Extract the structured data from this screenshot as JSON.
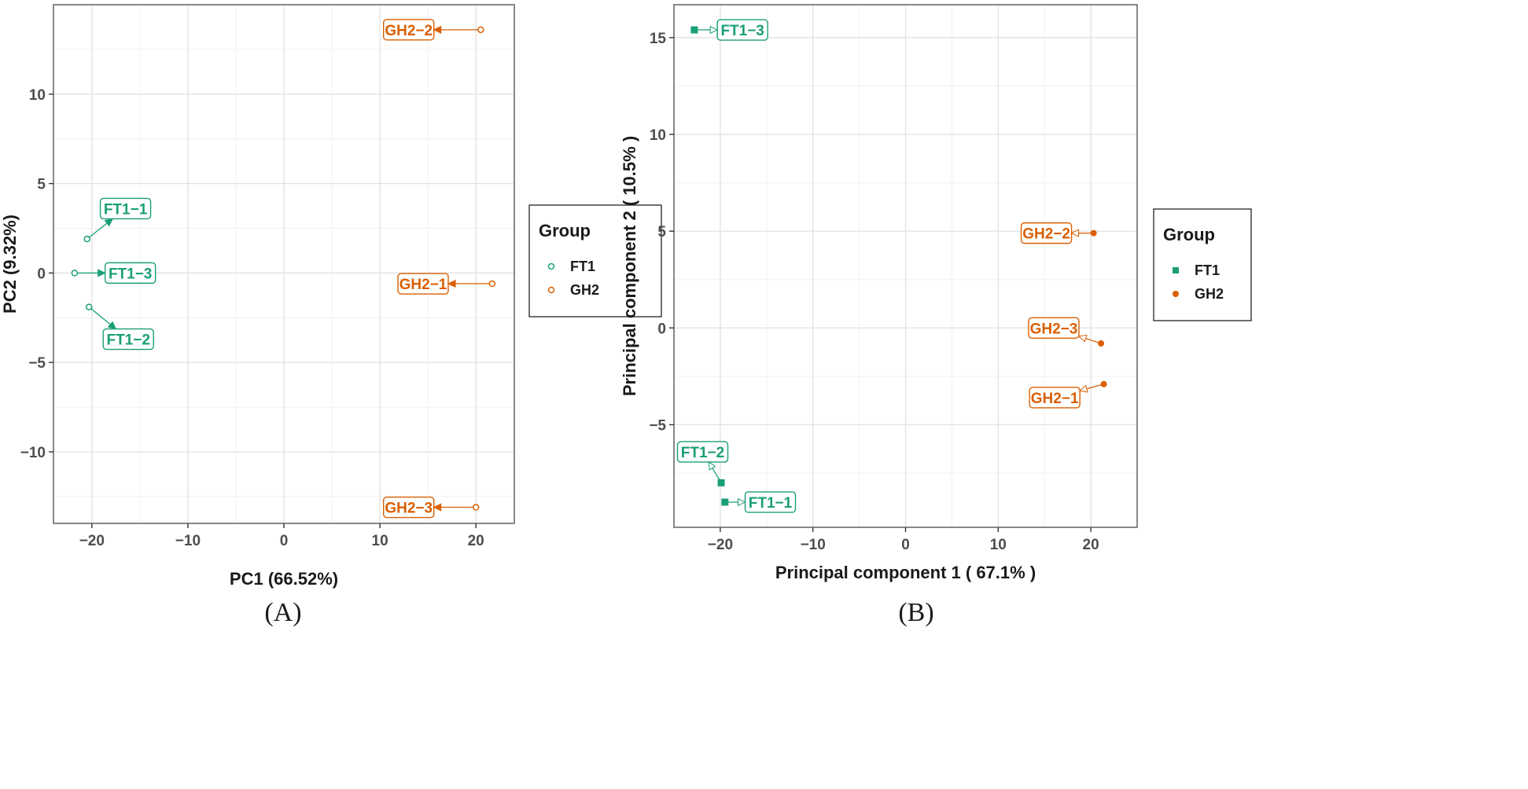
{
  "chart_data": [
    {
      "type": "scatter",
      "caption": "(A)",
      "title": "",
      "xlabel": "PC1 (66.52%)",
      "ylabel": "PC2 (9.32%)",
      "xlim": [
        -24,
        24
      ],
      "ylim": [
        -14,
        15
      ],
      "xticks": [
        -20,
        -10,
        0,
        10,
        20
      ],
      "yticks": [
        -10,
        -5,
        0,
        5,
        10
      ],
      "grid": true,
      "legend": {
        "title": "Group",
        "placement": "right",
        "marker": "open-circle"
      },
      "series": [
        {
          "name": "FT1",
          "color": "#1a9e77",
          "points": [
            {
              "label": "FT1−1",
              "x": -20.5,
              "y": 1.9,
              "lx": -16.5,
              "ly": 3.6
            },
            {
              "label": "FT1−3",
              "x": -21.8,
              "y": 0.0,
              "lx": -16.0,
              "ly": 0.0
            },
            {
              "label": "FT1−2",
              "x": -20.3,
              "y": -1.9,
              "lx": -16.2,
              "ly": -3.7
            }
          ]
        },
        {
          "name": "GH2",
          "color": "#d95f02",
          "points": [
            {
              "label": "GH2−2",
              "x": 20.5,
              "y": 13.6,
              "lx": 13.0,
              "ly": 13.6
            },
            {
              "label": "GH2−1",
              "x": 21.7,
              "y": -0.6,
              "lx": 14.5,
              "ly": -0.6
            },
            {
              "label": "GH2−3",
              "x": 20.0,
              "y": -13.1,
              "lx": 13.0,
              "ly": -13.1
            }
          ]
        }
      ]
    },
    {
      "type": "scatter",
      "caption": "(B)",
      "title": "",
      "xlabel": "Principal component 1 ( 67.1% )",
      "ylabel": "Principal component 2 ( 10.5% )",
      "xlim": [
        -25,
        25
      ],
      "ylim": [
        -10.3,
        16.7
      ],
      "xticks": [
        -20,
        -10,
        0,
        10,
        20
      ],
      "yticks": [
        -5,
        0,
        5,
        10,
        15
      ],
      "grid": true,
      "legend": {
        "title": "Group",
        "placement": "right",
        "marker": "filled"
      },
      "series": [
        {
          "name": "FT1",
          "color": "#1a9e77",
          "points": [
            {
              "label": "FT1−3",
              "x": -22.8,
              "y": 15.4,
              "lx": -17.6,
              "ly": 15.4
            },
            {
              "label": "FT1−2",
              "x": -19.9,
              "y": -8.0,
              "lx": -21.9,
              "ly": -6.4
            },
            {
              "label": "FT1−1",
              "x": -19.5,
              "y": -9.0,
              "lx": -14.6,
              "ly": -9.0
            }
          ]
        },
        {
          "name": "GH2",
          "color": "#d95f02",
          "points": [
            {
              "label": "GH2−2",
              "x": 20.3,
              "y": 4.9,
              "lx": 15.2,
              "ly": 4.9
            },
            {
              "label": "GH2−3",
              "x": 21.1,
              "y": -0.8,
              "lx": 16.0,
              "ly": 0.0
            },
            {
              "label": "GH2−1",
              "x": 21.4,
              "y": -2.9,
              "lx": 16.1,
              "ly": -3.6
            }
          ]
        }
      ]
    }
  ]
}
